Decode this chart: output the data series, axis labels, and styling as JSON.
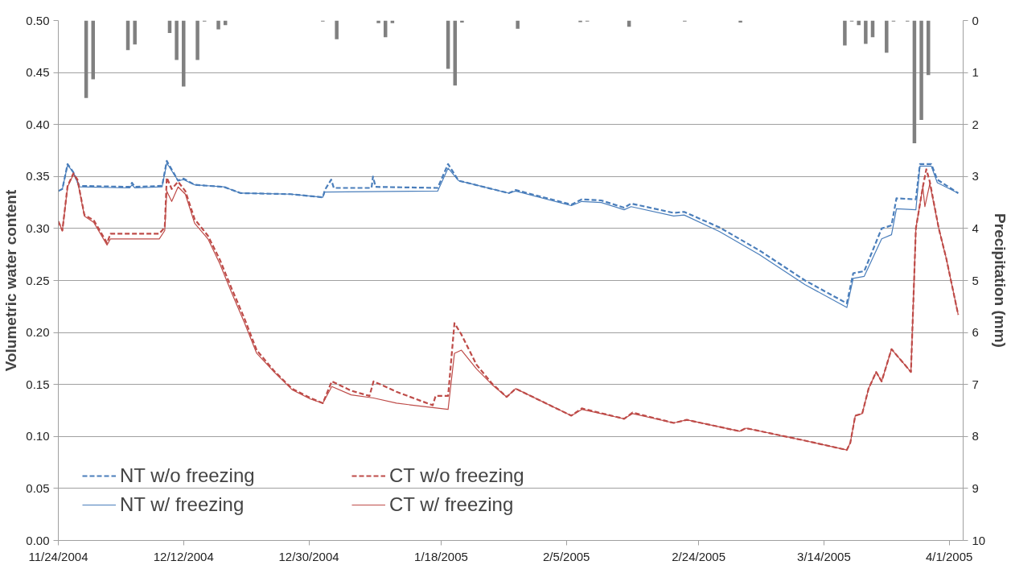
{
  "chart_data": {
    "type": "line",
    "ylabel": "Volumetric water content",
    "y2label": "Precipitation (mm)",
    "xlim": [
      "2004-11-24",
      "2005-04-03"
    ],
    "xticks": [
      {
        "value": "2004-11-24",
        "label": "11/24/2004"
      },
      {
        "value": "2004-12-12",
        "label": "12/12/2004"
      },
      {
        "value": "2004-12-30",
        "label": "12/30/2004"
      },
      {
        "value": "2005-01-18",
        "label": "1/18/2005"
      },
      {
        "value": "2005-02-05",
        "label": "2/5/2005"
      },
      {
        "value": "2005-02-24",
        "label": "2/24/2005"
      },
      {
        "value": "2005-03-14",
        "label": "3/14/2005"
      },
      {
        "value": "2005-04-01",
        "label": "4/1/2005"
      }
    ],
    "ylim": [
      0,
      0.5
    ],
    "yticks": [
      {
        "value": 0,
        "label": "0.00"
      },
      {
        "value": 0.05,
        "label": "0.05"
      },
      {
        "value": 0.1,
        "label": "0.10"
      },
      {
        "value": 0.15,
        "label": "0.15"
      },
      {
        "value": 0.2,
        "label": "0.20"
      },
      {
        "value": 0.25,
        "label": "0.25"
      },
      {
        "value": 0.3,
        "label": "0.30"
      },
      {
        "value": 0.35,
        "label": "0.35"
      },
      {
        "value": 0.4,
        "label": "0.40"
      },
      {
        "value": 0.45,
        "label": "0.45"
      },
      {
        "value": 0.5,
        "label": "0.50"
      }
    ],
    "y2lim": [
      10,
      0
    ],
    "y2ticks": [
      0,
      1,
      2,
      3,
      4,
      5,
      6,
      7,
      8,
      9,
      10
    ],
    "grid": "y",
    "legend": "bottom left",
    "series": [
      {
        "type": "bar",
        "axis": "y2",
        "color": "#808080",
        "x": [
          "2004-11-28",
          "2004-11-29",
          "2004-12-04",
          "2004-12-05",
          "2004-12-10",
          "2004-12-11",
          "2004-12-12",
          "2004-12-14",
          "2004-12-15",
          "2004-12-17",
          "2004-12-18",
          "2005-01-01",
          "2005-01-03",
          "2005-01-09",
          "2005-01-10",
          "2005-01-11",
          "2005-01-19",
          "2005-01-20",
          "2005-01-21",
          "2005-01-29",
          "2005-02-07",
          "2005-02-08",
          "2005-02-14",
          "2005-02-22",
          "2005-03-02",
          "2005-03-17",
          "2005-03-18",
          "2005-03-19",
          "2005-03-20",
          "2005-03-21",
          "2005-03-23",
          "2005-03-24",
          "2005-03-26",
          "2005-03-27",
          "2005-03-28",
          "2005-03-29"
        ],
        "values": [
          1.49,
          1.13,
          0.57,
          0.46,
          0.24,
          0.76,
          1.27,
          0.76,
          0.02,
          0.17,
          0.09,
          0.02,
          0.36,
          0.05,
          0.32,
          0.05,
          0.93,
          1.25,
          0.04,
          0.16,
          0.03,
          0.02,
          0.12,
          0.02,
          0.04,
          0.48,
          0.02,
          0.09,
          0.45,
          0.32,
          0.62,
          0.02,
          0.02,
          2.36,
          1.91,
          1.05
        ]
      },
      {
        "name": "NT w/o freezing",
        "color": "#4a7ebb",
        "line_style": "dashed",
        "x": [
          "2004-11-24T00:00",
          "2004-11-24T14:00",
          "2004-11-25T08:00",
          "2004-11-26T04:00",
          "2004-11-27T00:00",
          "2004-12-04T06:00",
          "2004-12-04T14:00",
          "2004-12-05T00:00",
          "2004-12-08T22:00",
          "2004-12-09T14:00",
          "2004-12-11T05:00",
          "2004-12-12T00:00",
          "2004-12-13T14:00",
          "2004-12-17T19:00",
          "2004-12-20T05:00",
          "2004-12-27T10:00",
          "2005-01-01T00:00",
          "2005-01-01T07:00",
          "2005-01-02T05:00",
          "2005-01-02T14:00",
          "2005-01-08T00:00",
          "2005-01-08T05:00",
          "2005-01-08T14:00",
          "2005-01-17T12:00",
          "2005-01-19T00:00",
          "2005-01-20T12:00",
          "2005-01-22T22:00",
          "2005-01-27T17:00",
          "2005-01-28T17:00",
          "2005-02-05T17:00",
          "2005-02-07T05:00",
          "2005-02-10T00:00",
          "2005-02-13T07:00",
          "2005-02-14T07:00",
          "2005-02-20T10:00",
          "2005-02-21T22:00",
          "2005-02-27T00:00",
          "2005-03-04T17:00",
          "2005-03-11T07:00",
          "2005-03-17T07:00",
          "2005-03-18T05:00",
          "2005-03-19T19:00",
          "2005-03-22T07:00",
          "2005-03-23T17:00",
          "2005-03-24T10:00",
          "2005-03-27T05:00",
          "2005-03-27T19:00",
          "2005-03-29T10:00",
          "2005-03-30T07:00",
          "2005-04-02T07:00"
        ],
        "values": [
          0.336,
          0.338,
          0.362,
          0.354,
          0.341,
          0.34,
          0.344,
          0.34,
          0.341,
          0.365,
          0.346,
          0.348,
          0.342,
          0.34,
          0.334,
          0.333,
          0.33,
          0.337,
          0.347,
          0.339,
          0.339,
          0.35,
          0.34,
          0.339,
          0.362,
          0.346,
          0.342,
          0.334,
          0.337,
          0.323,
          0.328,
          0.327,
          0.32,
          0.324,
          0.315,
          0.316,
          0.301,
          0.279,
          0.25,
          0.228,
          0.257,
          0.259,
          0.3,
          0.303,
          0.329,
          0.328,
          0.362,
          0.362,
          0.347,
          0.334
        ]
      },
      {
        "name": "NT w/ freezing",
        "color": "#4a7ebb",
        "line_style": "solid",
        "x": [
          "2004-11-24T00:00",
          "2004-11-24T14:00",
          "2004-11-25T08:00",
          "2004-11-26T04:00",
          "2004-11-27T00:00",
          "2004-12-04T06:00",
          "2004-12-04T14:00",
          "2004-12-05T00:00",
          "2004-12-08T22:00",
          "2004-12-09T14:00",
          "2004-12-11T05:00",
          "2004-12-12T00:00",
          "2004-12-13T14:00",
          "2004-12-17T19:00",
          "2004-12-20T05:00",
          "2004-12-27T10:00",
          "2005-01-01T00:00",
          "2005-01-01T07:00",
          "2005-01-17T12:00",
          "2005-01-19T00:00",
          "2005-01-20T12:00",
          "2005-01-22T22:00",
          "2005-01-27T17:00",
          "2005-01-28T17:00",
          "2005-02-05T17:00",
          "2005-02-07T05:00",
          "2005-02-10T00:00",
          "2005-02-13T07:00",
          "2005-02-14T07:00",
          "2005-02-20T10:00",
          "2005-02-21T22:00",
          "2005-02-27T00:00",
          "2005-03-04T17:00",
          "2005-03-11T07:00",
          "2005-03-17T07:00",
          "2005-03-18T05:00",
          "2005-03-19T19:00",
          "2005-03-22T07:00",
          "2005-03-23T17:00",
          "2005-03-24T10:00",
          "2005-03-27T05:00",
          "2005-03-27T19:00",
          "2005-03-29T10:00",
          "2005-03-30T07:00",
          "2005-04-02T07:00"
        ],
        "values": [
          0.336,
          0.338,
          0.361,
          0.354,
          0.34,
          0.339,
          0.342,
          0.339,
          0.34,
          0.363,
          0.346,
          0.347,
          0.342,
          0.34,
          0.334,
          0.333,
          0.33,
          0.335,
          0.336,
          0.358,
          0.346,
          0.342,
          0.334,
          0.336,
          0.322,
          0.326,
          0.325,
          0.318,
          0.321,
          0.312,
          0.313,
          0.297,
          0.275,
          0.246,
          0.224,
          0.252,
          0.254,
          0.29,
          0.294,
          0.319,
          0.318,
          0.36,
          0.36,
          0.344,
          0.334
        ]
      },
      {
        "name": "CT w/o freezing",
        "color": "#be4b48",
        "line_style": "dashed",
        "x": [
          "2004-11-24T00:00",
          "2004-11-24T14:00",
          "2004-11-25T08:00",
          "2004-11-26T04:00",
          "2004-11-26T18:00",
          "2004-11-27T18:00",
          "2004-11-29T02:00",
          "2004-12-01T00:00",
          "2004-12-01T12:00",
          "2004-12-08T12:00",
          "2004-12-09T07:00",
          "2004-12-09T14:00",
          "2004-12-10T07:00",
          "2004-12-11T05:00",
          "2004-12-12T06:00",
          "2004-12-13T14:00",
          "2004-12-15T12:00",
          "2004-12-17T05:00",
          "2004-12-18T22:00",
          "2004-12-20T17:00",
          "2004-12-22T12:00",
          "2004-12-25T00:00",
          "2004-12-27T14:00",
          "2004-12-30T05:00",
          "2005-01-01T00:00",
          "2005-01-02T07:00",
          "2005-01-05T02:00",
          "2005-01-07T17:00",
          "2005-01-08T07:00",
          "2005-01-11T14:00",
          "2005-01-16T19:00",
          "2005-01-17T05:00",
          "2005-01-19T00:00",
          "2005-01-19T22:00",
          "2005-01-20T22:00",
          "2005-01-23T02:00",
          "2005-01-25T07:00",
          "2005-01-27T10:00",
          "2005-01-28T17:00",
          "2005-02-05T17:00",
          "2005-02-07T05:00",
          "2005-02-13T07:00",
          "2005-02-14T12:00",
          "2005-02-20T10:00",
          "2005-02-22T07:00",
          "2005-03-01T22:00",
          "2005-03-02T19:00",
          "2005-03-11T07:00",
          "2005-03-17T07:00",
          "2005-03-17T19:00",
          "2005-03-18T12:00",
          "2005-03-19T12:00",
          "2005-03-20T10:00",
          "2005-03-21T12:00",
          "2005-03-22T07:00",
          "2005-03-23T17:00",
          "2005-03-26T12:00",
          "2005-03-27T05:00",
          "2005-03-28T05:00",
          "2005-03-28T17:00",
          "2005-03-29T05:00",
          "2005-03-30T12:00",
          "2005-03-31T14:00",
          "2005-04-02T07:00"
        ],
        "values": [
          0.307,
          0.298,
          0.341,
          0.353,
          0.347,
          0.313,
          0.308,
          0.286,
          0.295,
          0.295,
          0.301,
          0.349,
          0.338,
          0.345,
          0.336,
          0.309,
          0.293,
          0.27,
          0.242,
          0.214,
          0.183,
          0.163,
          0.146,
          0.137,
          0.132,
          0.153,
          0.144,
          0.139,
          0.153,
          0.143,
          0.13,
          0.139,
          0.139,
          0.209,
          0.198,
          0.169,
          0.151,
          0.138,
          0.146,
          0.12,
          0.127,
          0.117,
          0.123,
          0.113,
          0.116,
          0.105,
          0.108,
          0.096,
          0.087,
          0.094,
          0.12,
          0.122,
          0.146,
          0.162,
          0.153,
          0.184,
          0.162,
          0.3,
          0.34,
          0.357,
          0.345,
          0.3,
          0.271,
          0.217
        ]
      },
      {
        "name": "CT w/ freezing",
        "color": "#be4b48",
        "line_style": "solid",
        "x": [
          "2004-11-24T00:00",
          "2004-11-24T14:00",
          "2004-11-25T08:00",
          "2004-11-26T04:00",
          "2004-11-26T18:00",
          "2004-11-27T18:00",
          "2004-11-29T02:00",
          "2004-12-01T00:00",
          "2004-12-01T12:00",
          "2004-12-08T12:00",
          "2004-12-09T07:00",
          "2004-12-09T14:00",
          "2004-12-10T07:00",
          "2004-12-11T05:00",
          "2004-12-12T06:00",
          "2004-12-13T14:00",
          "2004-12-15T12:00",
          "2004-12-17T05:00",
          "2004-12-18T22:00",
          "2004-12-20T17:00",
          "2004-12-22T12:00",
          "2004-12-25T00:00",
          "2004-12-27T14:00",
          "2004-12-30T05:00",
          "2005-01-01T00:00",
          "2005-01-02T07:00",
          "2005-01-05T02:00",
          "2005-01-08T07:00",
          "2005-01-11T14:00",
          "2005-01-19T00:00",
          "2005-01-19T22:00",
          "2005-01-20T22:00",
          "2005-01-23T02:00",
          "2005-01-25T07:00",
          "2005-01-27T10:00",
          "2005-01-28T17:00",
          "2005-02-05T17:00",
          "2005-02-07T05:00",
          "2005-02-13T07:00",
          "2005-02-14T12:00",
          "2005-02-20T10:00",
          "2005-02-22T07:00",
          "2005-03-01T22:00",
          "2005-03-02T19:00",
          "2005-03-11T07:00",
          "2005-03-17T07:00",
          "2005-03-17T19:00",
          "2005-03-18T12:00",
          "2005-03-19T12:00",
          "2005-03-20T10:00",
          "2005-03-21T12:00",
          "2005-03-22T07:00",
          "2005-03-23T17:00",
          "2005-03-26T12:00",
          "2005-03-27T05:00",
          "2005-03-28T05:00",
          "2005-03-28T12:00",
          "2005-03-29T05:00",
          "2005-03-30T12:00",
          "2005-03-31T14:00",
          "2005-04-02T07:00"
        ],
        "values": [
          0.307,
          0.298,
          0.34,
          0.352,
          0.346,
          0.312,
          0.306,
          0.284,
          0.29,
          0.29,
          0.298,
          0.336,
          0.326,
          0.34,
          0.333,
          0.305,
          0.29,
          0.266,
          0.238,
          0.21,
          0.18,
          0.162,
          0.145,
          0.136,
          0.132,
          0.148,
          0.14,
          0.137,
          0.132,
          0.126,
          0.18,
          0.183,
          0.165,
          0.15,
          0.138,
          0.146,
          0.12,
          0.126,
          0.117,
          0.122,
          0.113,
          0.116,
          0.105,
          0.108,
          0.096,
          0.087,
          0.094,
          0.12,
          0.122,
          0.146,
          0.162,
          0.153,
          0.184,
          0.162,
          0.3,
          0.34,
          0.321,
          0.343,
          0.3,
          0.271,
          0.217
        ]
      }
    ]
  }
}
